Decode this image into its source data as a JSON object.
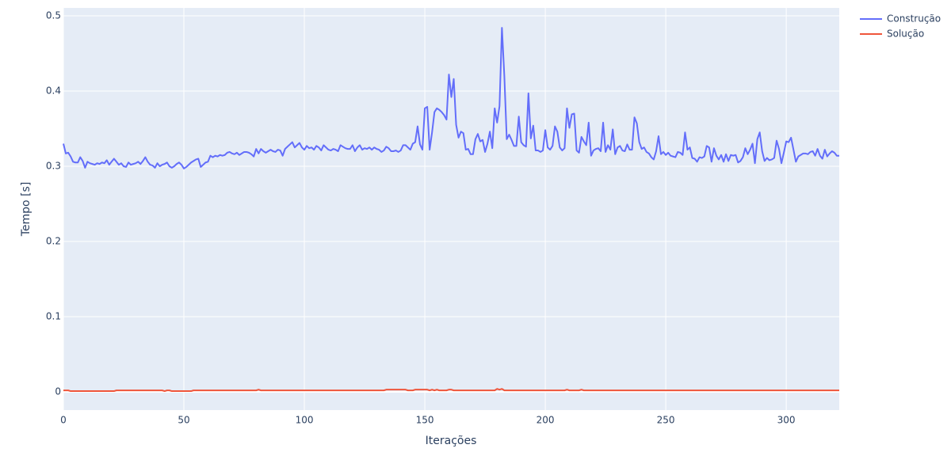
{
  "chart_data": {
    "type": "line",
    "xlabel": "Iterações",
    "ylabel": "Tempo [s]",
    "xlim": [
      0,
      322
    ],
    "ylim": [
      -0.0242,
      0.5105
    ],
    "xticks": [
      0,
      50,
      100,
      150,
      200,
      250,
      300
    ],
    "yticks": [
      0,
      0.1,
      0.2,
      0.3,
      0.4,
      0.5
    ],
    "grid": true,
    "legend": "top-right",
    "x": [
      0,
      1,
      2,
      3,
      4,
      5,
      6,
      7,
      8,
      9,
      10,
      11,
      12,
      13,
      14,
      15,
      16,
      17,
      18,
      19,
      20,
      21,
      22,
      23,
      24,
      25,
      26,
      27,
      28,
      29,
      30,
      31,
      32,
      33,
      34,
      35,
      36,
      37,
      38,
      39,
      40,
      41,
      42,
      43,
      44,
      45,
      46,
      47,
      48,
      49,
      50,
      51,
      52,
      53,
      54,
      55,
      56,
      57,
      58,
      59,
      60,
      61,
      62,
      63,
      64,
      65,
      66,
      67,
      68,
      69,
      70,
      71,
      72,
      73,
      74,
      75,
      76,
      77,
      78,
      79,
      80,
      81,
      82,
      83,
      84,
      85,
      86,
      87,
      88,
      89,
      90,
      91,
      92,
      93,
      94,
      95,
      96,
      97,
      98,
      99,
      100,
      101,
      102,
      103,
      104,
      105,
      106,
      107,
      108,
      109,
      110,
      111,
      112,
      113,
      114,
      115,
      116,
      117,
      118,
      119,
      120,
      121,
      122,
      123,
      124,
      125,
      126,
      127,
      128,
      129,
      130,
      131,
      132,
      133,
      134,
      135,
      136,
      137,
      138,
      139,
      140,
      141,
      142,
      143,
      144,
      145,
      146,
      147,
      148,
      149,
      150,
      151,
      152,
      153,
      154,
      155,
      156,
      157,
      158,
      159,
      160,
      161,
      162,
      163,
      164,
      165,
      166,
      167,
      168,
      169,
      170,
      171,
      172,
      173,
      174,
      175,
      176,
      177,
      178,
      179,
      180,
      181,
      182,
      183,
      184,
      185,
      186,
      187,
      188,
      189,
      190,
      191,
      192,
      193,
      194,
      195,
      196,
      197,
      198,
      199,
      200,
      201,
      202,
      203,
      204,
      205,
      206,
      207,
      208,
      209,
      210,
      211,
      212,
      213,
      214,
      215,
      216,
      217,
      218,
      219,
      220,
      221,
      222,
      223,
      224,
      225,
      226,
      227,
      228,
      229,
      230,
      231,
      232,
      233,
      234,
      235,
      236,
      237,
      238,
      239,
      240,
      241,
      242,
      243,
      244,
      245,
      246,
      247,
      248,
      249,
      250,
      251,
      252,
      253,
      254,
      255,
      256,
      257,
      258,
      259,
      260,
      261,
      262,
      263,
      264,
      265,
      266,
      267,
      268,
      269,
      270,
      271,
      272,
      273,
      274,
      275,
      276,
      277,
      278,
      279,
      280,
      281,
      282,
      283,
      284,
      285,
      286,
      287,
      288,
      289,
      290,
      291,
      292,
      293,
      294,
      295,
      296,
      297,
      298,
      299,
      300,
      301,
      302,
      303,
      304,
      305,
      306,
      307,
      308,
      309,
      310,
      311,
      312,
      313,
      314,
      315,
      316,
      317,
      318,
      319,
      320,
      321,
      322
    ],
    "series": [
      {
        "name": "Construção",
        "color": "#636efa",
        "values": [
          0.33,
          0.317,
          0.318,
          0.313,
          0.306,
          0.305,
          0.305,
          0.312,
          0.307,
          0.298,
          0.306,
          0.304,
          0.303,
          0.302,
          0.304,
          0.303,
          0.305,
          0.304,
          0.308,
          0.302,
          0.306,
          0.31,
          0.306,
          0.302,
          0.304,
          0.3,
          0.299,
          0.305,
          0.302,
          0.303,
          0.304,
          0.306,
          0.303,
          0.307,
          0.312,
          0.306,
          0.302,
          0.301,
          0.298,
          0.304,
          0.3,
          0.302,
          0.303,
          0.305,
          0.3,
          0.298,
          0.3,
          0.303,
          0.305,
          0.302,
          0.297,
          0.299,
          0.302,
          0.305,
          0.307,
          0.309,
          0.31,
          0.299,
          0.302,
          0.305,
          0.306,
          0.314,
          0.312,
          0.314,
          0.313,
          0.315,
          0.314,
          0.315,
          0.318,
          0.319,
          0.317,
          0.316,
          0.318,
          0.315,
          0.317,
          0.319,
          0.319,
          0.318,
          0.316,
          0.313,
          0.323,
          0.317,
          0.323,
          0.32,
          0.318,
          0.32,
          0.322,
          0.32,
          0.319,
          0.322,
          0.321,
          0.314,
          0.323,
          0.326,
          0.329,
          0.332,
          0.325,
          0.328,
          0.331,
          0.325,
          0.322,
          0.327,
          0.324,
          0.325,
          0.322,
          0.327,
          0.325,
          0.321,
          0.328,
          0.325,
          0.322,
          0.321,
          0.323,
          0.322,
          0.32,
          0.328,
          0.326,
          0.324,
          0.323,
          0.323,
          0.328,
          0.32,
          0.325,
          0.328,
          0.322,
          0.324,
          0.323,
          0.325,
          0.322,
          0.325,
          0.323,
          0.322,
          0.319,
          0.321,
          0.326,
          0.324,
          0.32,
          0.32,
          0.321,
          0.319,
          0.321,
          0.328,
          0.328,
          0.325,
          0.322,
          0.33,
          0.332,
          0.353,
          0.329,
          0.322,
          0.377,
          0.379,
          0.322,
          0.345,
          0.372,
          0.377,
          0.375,
          0.372,
          0.368,
          0.362,
          0.422,
          0.392,
          0.416,
          0.355,
          0.338,
          0.346,
          0.344,
          0.322,
          0.323,
          0.316,
          0.316,
          0.336,
          0.343,
          0.333,
          0.335,
          0.319,
          0.33,
          0.346,
          0.324,
          0.377,
          0.358,
          0.38,
          0.484,
          0.42,
          0.336,
          0.342,
          0.335,
          0.327,
          0.327,
          0.366,
          0.332,
          0.328,
          0.326,
          0.397,
          0.337,
          0.354,
          0.321,
          0.321,
          0.319,
          0.321,
          0.348,
          0.325,
          0.322,
          0.327,
          0.353,
          0.346,
          0.325,
          0.321,
          0.324,
          0.377,
          0.351,
          0.369,
          0.37,
          0.321,
          0.318,
          0.339,
          0.333,
          0.328,
          0.358,
          0.314,
          0.321,
          0.323,
          0.324,
          0.32,
          0.358,
          0.319,
          0.328,
          0.322,
          0.349,
          0.316,
          0.325,
          0.327,
          0.321,
          0.32,
          0.329,
          0.322,
          0.322,
          0.365,
          0.357,
          0.332,
          0.323,
          0.325,
          0.319,
          0.317,
          0.312,
          0.309,
          0.32,
          0.34,
          0.316,
          0.319,
          0.315,
          0.318,
          0.314,
          0.313,
          0.312,
          0.319,
          0.318,
          0.315,
          0.345,
          0.322,
          0.325,
          0.311,
          0.31,
          0.306,
          0.312,
          0.311,
          0.313,
          0.327,
          0.325,
          0.306,
          0.324,
          0.314,
          0.309,
          0.315,
          0.306,
          0.316,
          0.307,
          0.315,
          0.314,
          0.315,
          0.305,
          0.307,
          0.312,
          0.324,
          0.316,
          0.322,
          0.33,
          0.304,
          0.336,
          0.345,
          0.32,
          0.307,
          0.311,
          0.308,
          0.309,
          0.311,
          0.334,
          0.323,
          0.304,
          0.318,
          0.333,
          0.332,
          0.338,
          0.322,
          0.306,
          0.313,
          0.315,
          0.317,
          0.317,
          0.316,
          0.319,
          0.32,
          0.314,
          0.323,
          0.314,
          0.31,
          0.322,
          0.313,
          0.317,
          0.32,
          0.318,
          0.314,
          0.314
        ]
      },
      {
        "name": "Solução",
        "color": "#ef553b",
        "values": [
          0.002,
          0.002,
          0.002,
          0.001,
          0.001,
          0.001,
          0.001,
          0.001,
          0.001,
          0.001,
          0.001,
          0.001,
          0.001,
          0.001,
          0.001,
          0.001,
          0.001,
          0.001,
          0.001,
          0.001,
          0.001,
          0.001,
          0.002,
          0.002,
          0.002,
          0.002,
          0.002,
          0.002,
          0.002,
          0.002,
          0.002,
          0.002,
          0.002,
          0.002,
          0.002,
          0.002,
          0.002,
          0.002,
          0.002,
          0.002,
          0.002,
          0.002,
          0.001,
          0.002,
          0.002,
          0.001,
          0.001,
          0.001,
          0.001,
          0.001,
          0.001,
          0.001,
          0.001,
          0.001,
          0.002,
          0.002,
          0.002,
          0.002,
          0.002,
          0.002,
          0.002,
          0.002,
          0.002,
          0.002,
          0.002,
          0.002,
          0.002,
          0.002,
          0.002,
          0.002,
          0.002,
          0.002,
          0.002,
          0.002,
          0.002,
          0.002,
          0.002,
          0.002,
          0.002,
          0.002,
          0.002,
          0.003,
          0.002,
          0.002,
          0.002,
          0.002,
          0.002,
          0.002,
          0.002,
          0.002,
          0.002,
          0.002,
          0.002,
          0.002,
          0.002,
          0.002,
          0.002,
          0.002,
          0.002,
          0.002,
          0.002,
          0.002,
          0.002,
          0.002,
          0.002,
          0.002,
          0.002,
          0.002,
          0.002,
          0.002,
          0.002,
          0.002,
          0.002,
          0.002,
          0.002,
          0.002,
          0.002,
          0.002,
          0.002,
          0.002,
          0.002,
          0.002,
          0.002,
          0.002,
          0.002,
          0.002,
          0.002,
          0.002,
          0.002,
          0.002,
          0.002,
          0.002,
          0.002,
          0.002,
          0.003,
          0.003,
          0.003,
          0.003,
          0.003,
          0.003,
          0.003,
          0.003,
          0.003,
          0.002,
          0.002,
          0.002,
          0.003,
          0.003,
          0.003,
          0.003,
          0.003,
          0.003,
          0.002,
          0.003,
          0.002,
          0.003,
          0.002,
          0.002,
          0.002,
          0.002,
          0.003,
          0.003,
          0.002,
          0.002,
          0.002,
          0.002,
          0.002,
          0.002,
          0.002,
          0.002,
          0.002,
          0.002,
          0.002,
          0.002,
          0.002,
          0.002,
          0.002,
          0.002,
          0.002,
          0.002,
          0.004,
          0.003,
          0.004,
          0.002,
          0.002,
          0.002,
          0.002,
          0.002,
          0.002,
          0.002,
          0.002,
          0.002,
          0.002,
          0.002,
          0.002,
          0.002,
          0.002,
          0.002,
          0.002,
          0.002,
          0.002,
          0.002,
          0.002,
          0.002,
          0.002,
          0.002,
          0.002,
          0.002,
          0.002,
          0.003,
          0.002,
          0.002,
          0.002,
          0.002,
          0.002,
          0.003,
          0.002,
          0.002,
          0.002,
          0.002,
          0.002,
          0.002,
          0.002,
          0.002,
          0.002,
          0.002,
          0.002,
          0.002,
          0.002,
          0.002,
          0.002,
          0.002,
          0.002,
          0.002,
          0.002,
          0.002,
          0.002,
          0.002,
          0.002,
          0.002,
          0.002,
          0.002,
          0.002,
          0.002,
          0.002,
          0.002,
          0.002,
          0.002,
          0.002,
          0.002,
          0.002,
          0.002,
          0.002,
          0.002,
          0.002,
          0.002,
          0.002,
          0.002,
          0.002,
          0.002,
          0.002,
          0.002,
          0.002,
          0.002,
          0.002,
          0.002,
          0.002,
          0.002,
          0.002,
          0.002,
          0.002,
          0.002,
          0.002,
          0.002,
          0.002,
          0.002,
          0.002,
          0.002,
          0.002,
          0.002,
          0.002,
          0.002,
          0.002,
          0.002,
          0.002,
          0.002,
          0.002,
          0.002,
          0.002,
          0.002,
          0.002,
          0.002,
          0.002,
          0.002,
          0.002,
          0.002,
          0.002,
          0.002,
          0.002,
          0.002,
          0.002,
          0.002,
          0.002,
          0.002,
          0.002,
          0.002,
          0.002,
          0.002,
          0.002,
          0.002,
          0.002,
          0.002,
          0.002,
          0.002,
          0.002,
          0.002,
          0.002,
          0.002,
          0.002,
          0.002,
          0.002,
          0.002,
          0.002
        ]
      }
    ]
  }
}
